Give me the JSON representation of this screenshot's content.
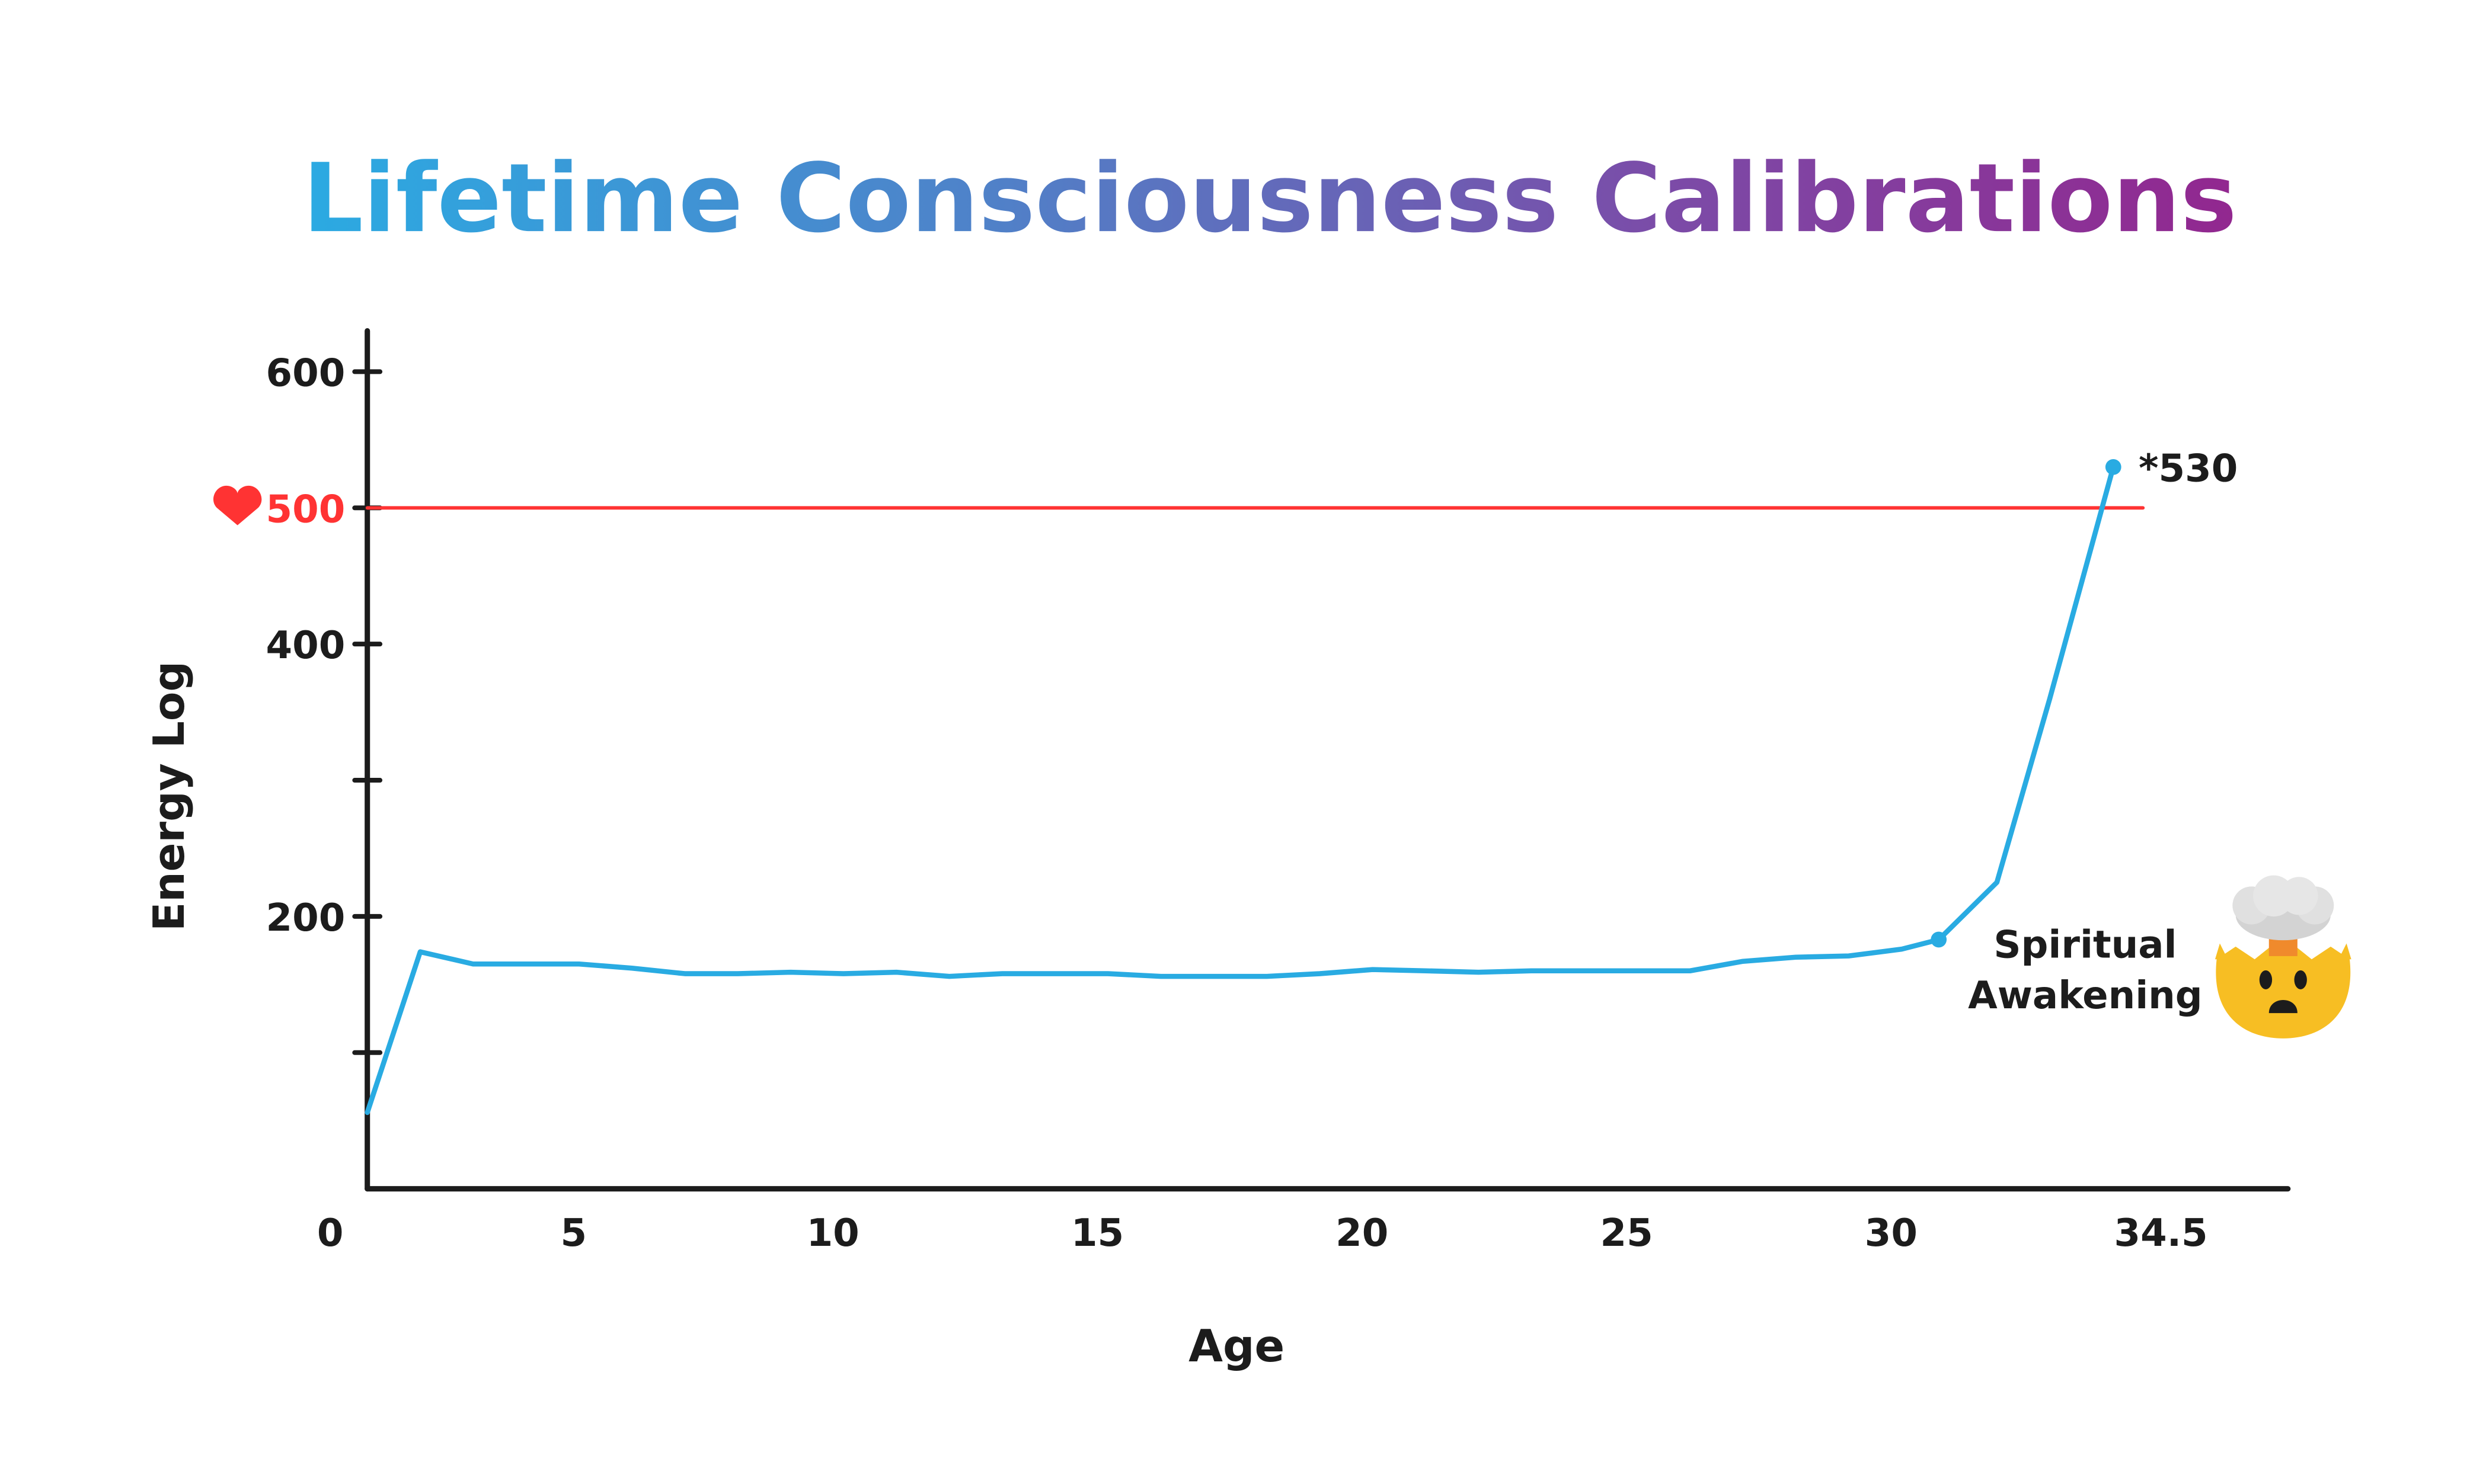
{
  "chart_data": {
    "type": "line",
    "title": "Lifetime Consciousness Calibrations",
    "title_gradient": [
      "#2BAAE2",
      "#4F82C9",
      "#7B4CA8",
      "#92278F"
    ],
    "xlabel": "Age",
    "ylabel": "Energy Log",
    "x_ticks": [
      {
        "label": "0",
        "value": 0.3
      },
      {
        "label": "5",
        "value": 4.9
      },
      {
        "label": "10",
        "value": 9.8
      },
      {
        "label": "15",
        "value": 14.8
      },
      {
        "label": "20",
        "value": 19.8
      },
      {
        "label": "25",
        "value": 24.8
      },
      {
        "label": "30",
        "value": 29.8
      },
      {
        "label": "34.5",
        "value": 34.9
      }
    ],
    "y_ticks": [
      {
        "label": "",
        "value": 100
      },
      {
        "label": "200",
        "value": 200
      },
      {
        "label": "",
        "value": 300
      },
      {
        "label": "400",
        "value": 400
      },
      {
        "label": "500",
        "value": 500,
        "highlight": true
      },
      {
        "label": "600",
        "value": 600
      }
    ],
    "xlim": [
      1,
      37.3
    ],
    "ylim": [
      0,
      630
    ],
    "grid": false,
    "series": [
      {
        "name": "Energy Log",
        "color": "#29ABE2",
        "x": [
          1,
          2,
          3,
          4,
          5,
          6,
          7,
          8,
          9,
          10,
          11,
          12,
          13,
          14,
          15,
          16,
          17,
          18,
          19,
          20,
          21,
          22,
          23,
          24,
          25,
          26,
          27,
          28,
          29,
          30,
          30.7,
          31.8,
          32.8,
          34
        ],
        "values": [
          56,
          174,
          165,
          165,
          165,
          162,
          158,
          158,
          159,
          158,
          159,
          156,
          158,
          158,
          158,
          156,
          156,
          156,
          158,
          161,
          160,
          159,
          160,
          160,
          160,
          160,
          167,
          170,
          171,
          176,
          183,
          225,
          360,
          530
        ]
      }
    ],
    "reference_line": {
      "value": 500,
      "label": "500",
      "color": "#FF3333",
      "icon": "heart-icon",
      "x_end": 34.5
    },
    "annotations": [
      {
        "text": "*530",
        "x": 34,
        "y": 530,
        "marker": true
      },
      {
        "text_lines": [
          "Spiritual",
          "Awakening"
        ],
        "x": 30.7,
        "y": 183,
        "marker": true,
        "emoji": "🤯",
        "emoji_name": "exploding-head-icon"
      }
    ]
  }
}
